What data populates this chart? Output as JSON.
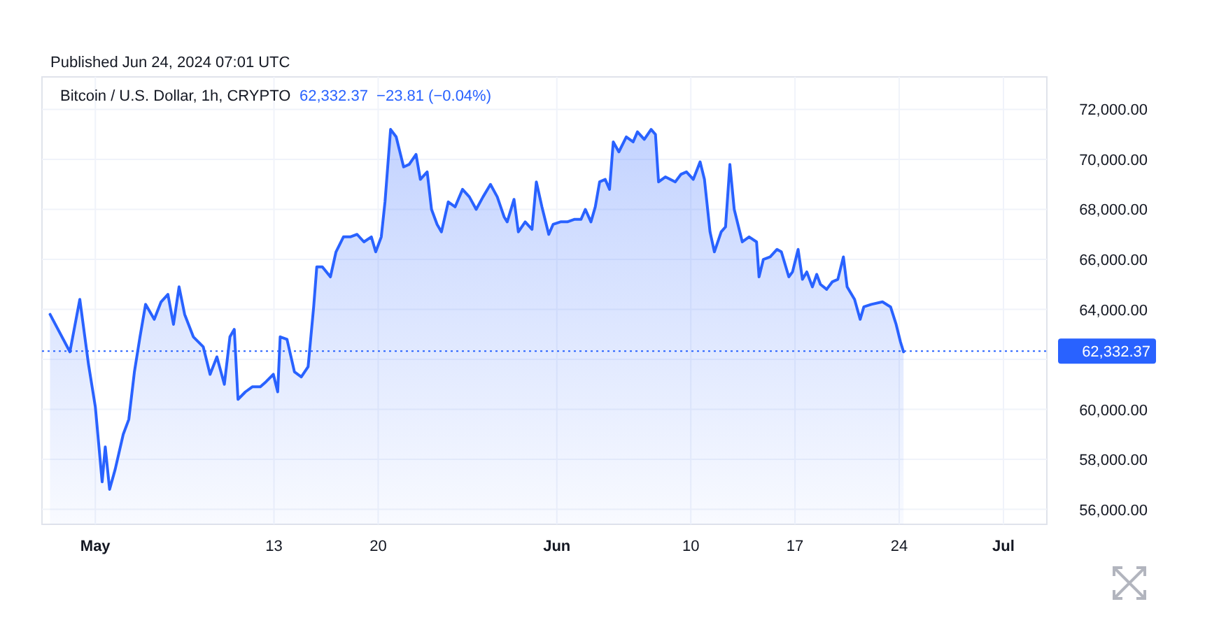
{
  "chart_data": {
    "type": "area",
    "title": "Bitcoin / U.S. Dollar, 1h, CRYPTO",
    "annotations": [
      "Published Jun 24, 2024 07:01 UTC",
      "62,332.37  −23.81 (−0.04%)"
    ],
    "series": [
      {
        "color": "#2962ff",
        "x": [
          "2024-04-27T23:00",
          "2024-04-29T07:00",
          "2024-04-29T23:00",
          "2024-04-30T13:00",
          "2024-05-01T00:00",
          "2024-05-01T11:00",
          "2024-05-01T16:00",
          "2024-05-01T23:00",
          "2024-05-02T08:00",
          "2024-05-02T21:00",
          "2024-05-03T06:00",
          "2024-05-03T15:00",
          "2024-05-04T00:00",
          "2024-05-04T09:00",
          "2024-05-04T23:00",
          "2024-05-05T10:00",
          "2024-05-05T21:00",
          "2024-05-06T06:00",
          "2024-05-06T15:00",
          "2024-05-07T00:00",
          "2024-05-07T14:00",
          "2024-05-08T06:00",
          "2024-05-08T17:00",
          "2024-05-09T04:00",
          "2024-05-09T16:00",
          "2024-05-10T01:00",
          "2024-05-10T08:00",
          "2024-05-10T14:00",
          "2024-05-11T02:00",
          "2024-05-11T13:00",
          "2024-05-12T02:00",
          "2024-05-12T11:00",
          "2024-05-12T23:00",
          "2024-05-13T06:00",
          "2024-05-13T10:00",
          "2024-05-13T21:00",
          "2024-05-14T09:00",
          "2024-05-14T20:00",
          "2024-05-15T07:00",
          "2024-05-15T16:00",
          "2024-05-15T21:00",
          "2024-05-16T06:00",
          "2024-05-16T19:00",
          "2024-05-17T04:00",
          "2024-05-17T16:00",
          "2024-05-18T03:00",
          "2024-05-18T14:00",
          "2024-05-19T01:00",
          "2024-05-19T13:00",
          "2024-05-19T20:00",
          "2024-05-20T05:00",
          "2024-05-20T11:00",
          "2024-05-20T20:00",
          "2024-05-21T05:00",
          "2024-05-21T17:00",
          "2024-05-22T02:00",
          "2024-05-22T13:00",
          "2024-05-22T20:00",
          "2024-05-23T07:00",
          "2024-05-23T14:00",
          "2024-05-23T23:00",
          "2024-05-24T06:00",
          "2024-05-24T17:00",
          "2024-05-25T04:00",
          "2024-05-25T16:00",
          "2024-05-26T03:00",
          "2024-05-26T14:00",
          "2024-05-27T01:00",
          "2024-05-27T13:00",
          "2024-05-28T00:00",
          "2024-05-28T11:00",
          "2024-05-28T16:00",
          "2024-05-29T03:00",
          "2024-05-29T10:00",
          "2024-05-29T21:00",
          "2024-05-30T08:00",
          "2024-05-30T15:00",
          "2024-05-31T00:00",
          "2024-05-31T11:00",
          "2024-05-31T18:00",
          "2024-06-01T06:00",
          "2024-06-01T17:00",
          "2024-06-02T04:00",
          "2024-06-02T15:00",
          "2024-06-02T22:00",
          "2024-06-03T07:00",
          "2024-06-03T14:00",
          "2024-06-03T21:00",
          "2024-06-04T06:00",
          "2024-06-04T13:00",
          "2024-06-04T19:00",
          "2024-06-05T04:00",
          "2024-06-05T16:00",
          "2024-06-06T03:00",
          "2024-06-06T10:00",
          "2024-06-06T21:00",
          "2024-06-07T08:00",
          "2024-06-07T15:00",
          "2024-06-07T20:00",
          "2024-06-08T07:00",
          "2024-06-08T23:00",
          "2024-06-09T08:00",
          "2024-06-09T17:00",
          "2024-06-10T04:00",
          "2024-06-10T15:00",
          "2024-06-10T22:00",
          "2024-06-11T07:00",
          "2024-06-11T14:00",
          "2024-06-12T01:00",
          "2024-06-12T08:00",
          "2024-06-12T15:00",
          "2024-06-12T22:00",
          "2024-06-13T04:00",
          "2024-06-13T11:00",
          "2024-06-13T22:00",
          "2024-06-14T10:00",
          "2024-06-14T14:00",
          "2024-06-14T21:00",
          "2024-06-15T08:00",
          "2024-06-15T19:00",
          "2024-06-16T02:00",
          "2024-06-16T14:00",
          "2024-06-16T20:00",
          "2024-06-17T05:00",
          "2024-06-17T12:00",
          "2024-06-17T19:00",
          "2024-06-18T04:00",
          "2024-06-18T11:00",
          "2024-06-18T17:00",
          "2024-06-19T03:00",
          "2024-06-19T12:00",
          "2024-06-19T21:00",
          "2024-06-20T06:00",
          "2024-06-20T12:00",
          "2024-06-21T00:00",
          "2024-06-21T09:00",
          "2024-06-21T15:00",
          "2024-06-22T03:00",
          "2024-06-22T21:00",
          "2024-06-23T10:00",
          "2024-06-23T19:00",
          "2024-06-24T02:00",
          "2024-06-24T07:00"
        ],
        "values": [
          63800,
          62300,
          64400,
          61800,
          60100,
          57100,
          58500,
          56800,
          57600,
          59000,
          59600,
          61500,
          62900,
          64200,
          63600,
          64300,
          64600,
          63400,
          64900,
          63800,
          62900,
          62500,
          61400,
          62100,
          61000,
          62900,
          63200,
          60400,
          60700,
          60900,
          60900,
          61100,
          61400,
          60700,
          62900,
          62800,
          61500,
          61300,
          61700,
          64100,
          65700,
          65700,
          65300,
          66300,
          66900,
          66900,
          67000,
          66700,
          66900,
          66300,
          66900,
          68300,
          71200,
          70900,
          69700,
          69800,
          70200,
          69200,
          69500,
          68000,
          67400,
          67100,
          68300,
          68100,
          68800,
          68500,
          68000,
          68500,
          69000,
          68500,
          67700,
          67500,
          68400,
          67100,
          67500,
          67200,
          69100,
          68100,
          67000,
          67400,
          67500,
          67500,
          67600,
          67600,
          68000,
          67500,
          68100,
          69100,
          69200,
          68800,
          70700,
          70300,
          70900,
          70700,
          71100,
          70800,
          71200,
          71000,
          69100,
          69300,
          69100,
          69400,
          69500,
          69200,
          69900,
          69200,
          67100,
          66300,
          67100,
          67300,
          69800,
          68000,
          67400,
          66700,
          66900,
          66700,
          65300,
          66000,
          66100,
          66400,
          66300,
          65300,
          65500,
          66400,
          65200,
          65500,
          64900,
          65400,
          65000,
          64800,
          65100,
          65200,
          66100,
          64900,
          64400,
          63600,
          64100,
          64200,
          64300,
          64100,
          63400,
          62700,
          62300
        ]
      }
    ],
    "xlim": [
      "2024-04-27T10:00",
      "2024-07-03T22:00"
    ],
    "xticks": [
      {
        "value": "2024-05-01",
        "label": "May"
      },
      {
        "value": "2024-05-13",
        "label": "13"
      },
      {
        "value": "2024-05-20",
        "label": "20"
      },
      {
        "value": "2024-06-01",
        "label": "Jun"
      },
      {
        "value": "2024-06-10",
        "label": "10"
      },
      {
        "value": "2024-06-17",
        "label": "17"
      },
      {
        "value": "2024-06-24",
        "label": "24"
      },
      {
        "value": "2024-07-01",
        "label": "Jul"
      }
    ],
    "ylim": [
      55400,
      73300
    ],
    "yticks": [
      {
        "value": 56000,
        "label": "56,000.00"
      },
      {
        "value": 58000,
        "label": "58,000.00"
      },
      {
        "value": 60000,
        "label": "60,000.00"
      },
      {
        "value": 62000,
        "label": null
      },
      {
        "value": 64000,
        "label": "64,000.00"
      },
      {
        "value": 66000,
        "label": "66,000.00"
      },
      {
        "value": 68000,
        "label": "68,000.00"
      },
      {
        "value": 70000,
        "label": "70,000.00"
      },
      {
        "value": 72000,
        "label": "72,000.00"
      }
    ],
    "ref_lines": [
      {
        "axis": "y",
        "value": 62332.37,
        "label": "62,332.37",
        "color": "#2962ff",
        "line_style": "dotted"
      }
    ],
    "grid": true
  }
}
